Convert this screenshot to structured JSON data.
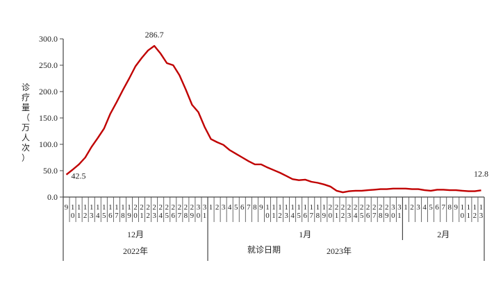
{
  "chart_data": {
    "type": "line",
    "title": "",
    "ylabel": "诊疗量（万人次）",
    "xlabel": "就诊日期",
    "ylim": [
      0,
      300
    ],
    "yticks": [
      "0.0",
      "50.0",
      "100.0",
      "150.0",
      "200.0",
      "250.0",
      "300.0"
    ],
    "grid": false,
    "color": "#c00000",
    "groups": [
      {
        "year": "2022年",
        "months": [
          {
            "label": "12月",
            "days": [
              9,
              10,
              11,
              12,
              13,
              14,
              15,
              16,
              17,
              18,
              19,
              20,
              21,
              22,
              23,
              24,
              25,
              26,
              27,
              28,
              29,
              30,
              31
            ]
          }
        ]
      },
      {
        "year": "2023年",
        "months": [
          {
            "label": "1月",
            "days": [
              1,
              2,
              3,
              4,
              5,
              6,
              7,
              8,
              9,
              10,
              11,
              12,
              13,
              14,
              15,
              16,
              17,
              18,
              19,
              20,
              21,
              22,
              23,
              24,
              25,
              26,
              27,
              28,
              29,
              30,
              31
            ]
          },
          {
            "label": "2月",
            "days": [
              1,
              2,
              3,
              4,
              5,
              6,
              7,
              8,
              9,
              10,
              11,
              12,
              13
            ]
          }
        ]
      }
    ],
    "values": [
      42.5,
      52,
      62,
      75,
      95,
      112,
      130,
      158,
      180,
      203,
      225,
      248,
      264,
      278,
      286.7,
      272,
      254,
      250,
      231,
      204,
      175,
      161,
      133,
      110,
      104,
      99,
      89,
      82,
      75,
      68,
      62,
      62,
      56,
      51,
      46,
      40,
      34,
      32,
      33,
      29,
      27,
      24,
      20,
      12,
      9,
      11,
      12,
      12,
      13,
      14,
      15,
      15,
      16,
      16,
      16,
      15,
      15,
      13,
      12,
      14,
      14,
      13,
      13,
      12,
      11,
      11,
      12.8
    ],
    "data_labels": [
      {
        "index": 0,
        "text": "42.5"
      },
      {
        "index": 14,
        "text": "286.7"
      },
      {
        "index": 66,
        "text": "12.8"
      }
    ]
  }
}
